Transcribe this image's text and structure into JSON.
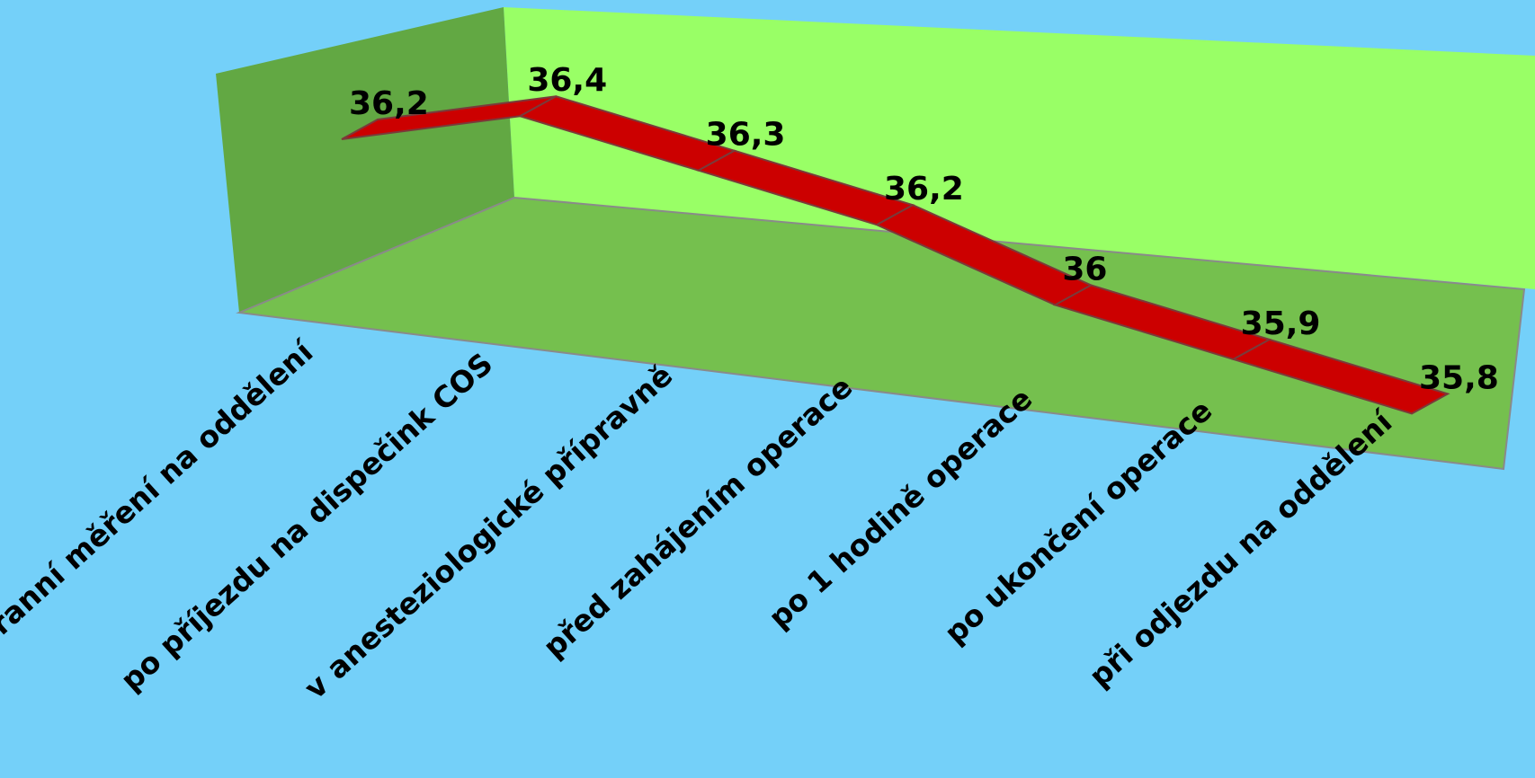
{
  "chart_data": {
    "type": "line",
    "title": "",
    "xlabel": "",
    "ylabel": "",
    "categories": [
      "ranní měření na oddělení",
      "po příjezdu na dispečink COS",
      "v anesteziologické přípravně",
      "před zahájením operace",
      "po 1 hodině operace",
      "po ukončení operace",
      "při odjezdu na oddělení"
    ],
    "series": [
      {
        "values": [
          36.2,
          36.4,
          36.3,
          36.2,
          36.0,
          35.9,
          35.8
        ],
        "labels": [
          "36,2",
          "36,4",
          "36,3",
          "36,2",
          "36",
          "35,9",
          "35,8"
        ]
      }
    ],
    "grid": false,
    "legend": "none",
    "three_d": true
  },
  "colors": {
    "background": "#74d0f9",
    "back_wall": "#99ff66",
    "side_wall": "#62a843",
    "floor": "#75c04e",
    "series_ribbon": "#cc0000"
  }
}
